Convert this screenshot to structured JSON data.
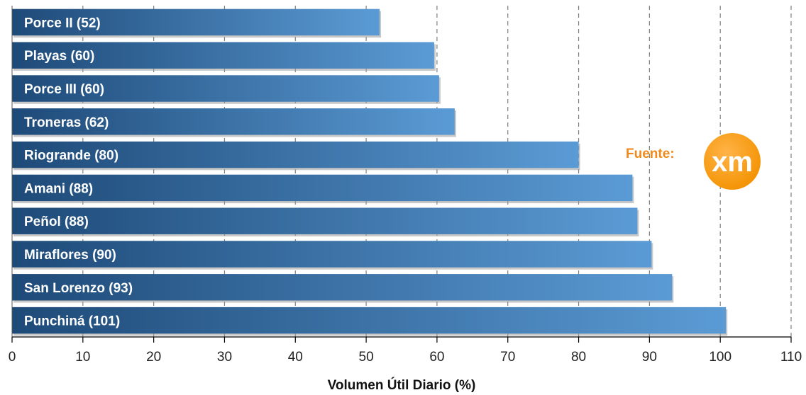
{
  "chart_data": {
    "type": "bar",
    "orientation": "horizontal",
    "categories": [
      "Porce II (52)",
      "Playas (60)",
      "Porce III (60)",
      "Troneras (62)",
      "Riogrande (80)",
      "Amani (88)",
      "Peñol (88)",
      "Miraflores (90)",
      "San Lorenzo (93)",
      "Punchiná (101)"
    ],
    "values": [
      51.9,
      59.6,
      60.3,
      62.5,
      80.0,
      87.6,
      88.3,
      90.3,
      93.2,
      100.8
    ],
    "xlabel": "Volumen Útil Diario (%)",
    "xlim": [
      0,
      110
    ],
    "xticks": [
      0,
      10,
      20,
      30,
      40,
      50,
      60,
      70,
      80,
      90,
      100,
      110
    ],
    "gridlines": "vertical dashed",
    "bar_gradient": [
      "#1e4a78",
      "#5b9bd5"
    ]
  },
  "source": {
    "label": "Fuente:",
    "logo_text": "xm",
    "logo_color": "#f39200"
  }
}
